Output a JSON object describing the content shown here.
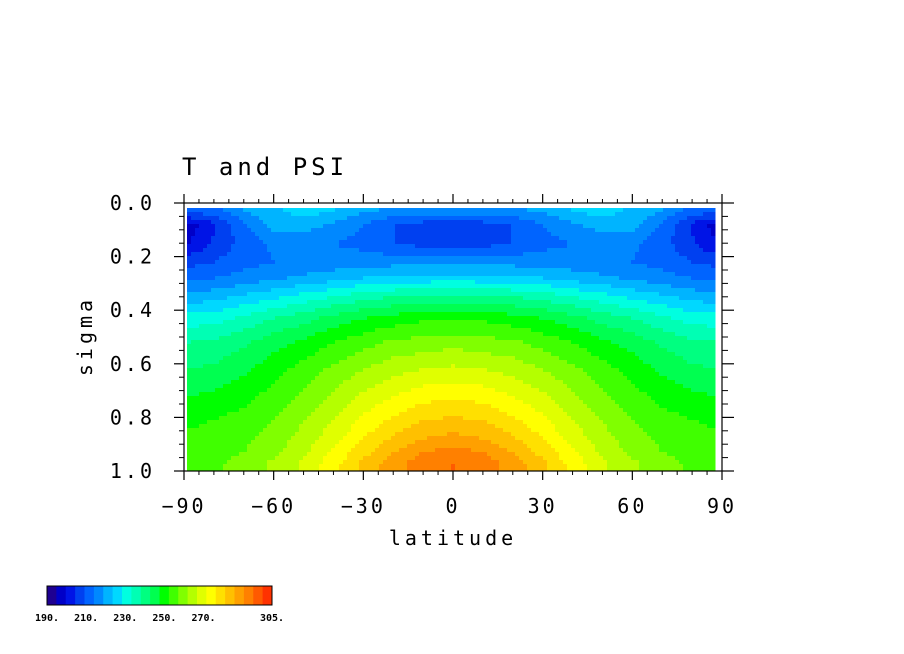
{
  "chart_data": {
    "type": "heatmap",
    "title": "T and PSI",
    "xlabel": "latitude",
    "ylabel": "sigma",
    "xlim": [
      -90,
      90
    ],
    "ylim": [
      1.0,
      0.0
    ],
    "y_inverted": true,
    "x_ticks": [
      -90,
      -60,
      -30,
      0,
      30,
      60,
      90
    ],
    "x_tick_labels": [
      "−90",
      "−60",
      "−30",
      "0",
      "30",
      "60",
      "90"
    ],
    "y_ticks": [
      0.0,
      0.2,
      0.4,
      0.6,
      0.8,
      1.0
    ],
    "y_tick_labels": [
      "0.0",
      "0.2",
      "0.4",
      "0.6",
      "0.8",
      "1.0"
    ],
    "lat": [
      -88,
      -80,
      -70,
      -60,
      -50,
      -40,
      -30,
      -20,
      -10,
      0,
      10,
      20,
      30,
      40,
      50,
      60,
      70,
      80,
      88
    ],
    "sigma": [
      0.03,
      0.08,
      0.15,
      0.22,
      0.28,
      0.35,
      0.43,
      0.52,
      0.62,
      0.72,
      0.81,
      0.88,
      0.93,
      0.97
    ],
    "temperature": [
      [
        212,
        213,
        220,
        224,
        227,
        225,
        221,
        219,
        219,
        219,
        219,
        219,
        221,
        225,
        227,
        224,
        220,
        213,
        212
      ],
      [
        198,
        204,
        214,
        222,
        223,
        219,
        215,
        210,
        208,
        207,
        208,
        210,
        215,
        219,
        223,
        222,
        214,
        204,
        198
      ],
      [
        200,
        206,
        212,
        216,
        216,
        215,
        213,
        210,
        208,
        207,
        208,
        210,
        213,
        215,
        216,
        216,
        212,
        206,
        200
      ],
      [
        208,
        210,
        213,
        215,
        216,
        217,
        218,
        218,
        218,
        218,
        218,
        218,
        218,
        217,
        216,
        215,
        213,
        210,
        208
      ],
      [
        214,
        215,
        217,
        219,
        221,
        223,
        225,
        226,
        227,
        227,
        227,
        226,
        225,
        223,
        221,
        219,
        217,
        215,
        214
      ],
      [
        222,
        223,
        226,
        229,
        232,
        235,
        238,
        240,
        241,
        242,
        241,
        240,
        238,
        235,
        232,
        229,
        226,
        223,
        222
      ],
      [
        232,
        233,
        236,
        240,
        243,
        247,
        250,
        252,
        254,
        254,
        254,
        252,
        250,
        247,
        243,
        240,
        236,
        233,
        232
      ],
      [
        240,
        241,
        244,
        248,
        251,
        255,
        258,
        261,
        262,
        263,
        262,
        261,
        258,
        255,
        251,
        248,
        244,
        241,
        240
      ],
      [
        245,
        246,
        249,
        253,
        257,
        261,
        265,
        268,
        270,
        271,
        270,
        268,
        265,
        261,
        257,
        253,
        249,
        246,
        245
      ],
      [
        250,
        251,
        253,
        257,
        261,
        266,
        271,
        275,
        278,
        279,
        278,
        275,
        271,
        266,
        261,
        257,
        253,
        251,
        250
      ],
      [
        254,
        255,
        257,
        260,
        265,
        270,
        276,
        281,
        285,
        286,
        285,
        281,
        276,
        270,
        265,
        260,
        257,
        255,
        254
      ],
      [
        256,
        257,
        259,
        262,
        267,
        273,
        280,
        286,
        290,
        292,
        290,
        286,
        280,
        273,
        267,
        262,
        259,
        257,
        256
      ],
      [
        257,
        258,
        260,
        264,
        269,
        276,
        283,
        290,
        295,
        297,
        295,
        290,
        283,
        276,
        269,
        264,
        260,
        258,
        257
      ],
      [
        258,
        259,
        262,
        266,
        271,
        278,
        286,
        293,
        298,
        300,
        298,
        293,
        286,
        278,
        271,
        266,
        262,
        259,
        258
      ]
    ],
    "colorbar": {
      "min": 190,
      "max": 305,
      "step": 5,
      "labels": [
        "190.",
        "210.",
        "230.",
        "250.",
        "270.",
        "305."
      ],
      "colors": [
        "#1e0091",
        "#0000c8",
        "#0014e6",
        "#0040f0",
        "#0064ff",
        "#0088ff",
        "#00b4ff",
        "#00d8ff",
        "#00ffe0",
        "#00ffb4",
        "#00ff80",
        "#00ff50",
        "#00ff00",
        "#40ff00",
        "#80ff00",
        "#b4ff00",
        "#e0ff00",
        "#ffff00",
        "#ffe000",
        "#ffc000",
        "#ffa000",
        "#ff8000",
        "#ff5a00",
        "#ff3200"
      ]
    }
  }
}
